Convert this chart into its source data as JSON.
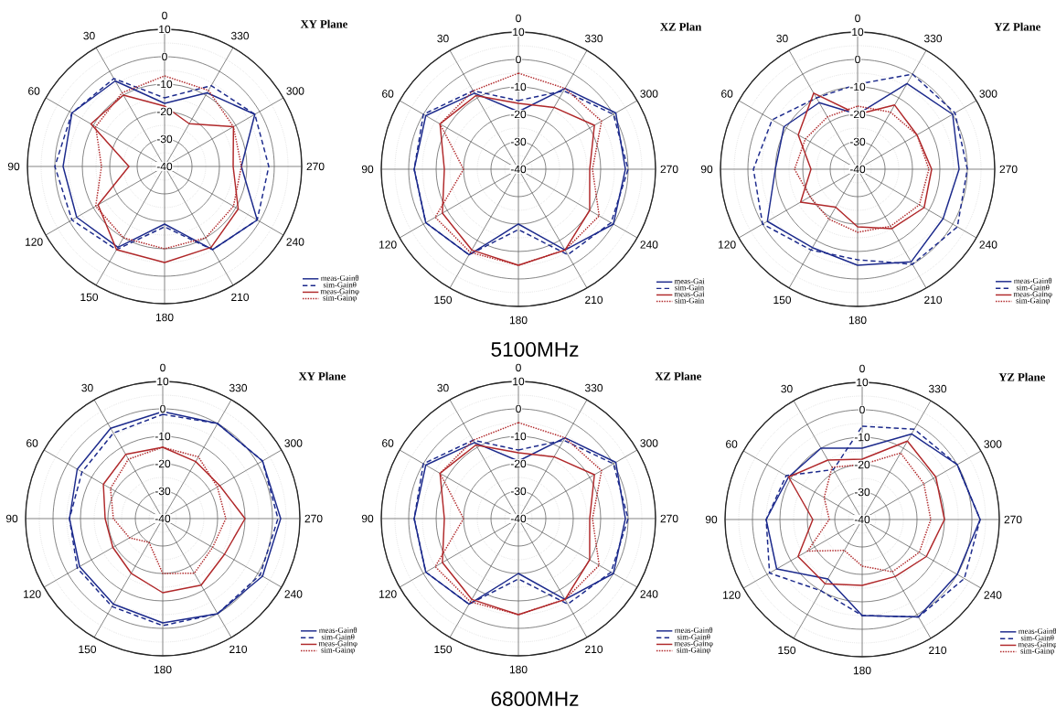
{
  "chart_data": [
    {
      "type": "radar",
      "title": "XY Plane",
      "categories": [
        "0",
        "330",
        "300",
        "270",
        "240",
        "210",
        "180",
        "150",
        "120",
        "90",
        "60",
        "30"
      ],
      "ylim": [
        -40,
        10
      ],
      "yticks": [
        -40,
        -30,
        -20,
        -10,
        0,
        10
      ],
      "grid": true,
      "legend": "bottom right",
      "series": [
        {
          "name": "meas-Gainθ",
          "color": "#1c2a8c",
          "line_style": "solid",
          "values": [
            -17,
            -9,
            -2,
            -12,
            -1,
            -5,
            -19,
            -6,
            -3,
            -3,
            -1,
            -4
          ]
        },
        {
          "name": "sim-Gainθ",
          "color": "#1c2a8c",
          "line_style": "dashed",
          "values": [
            -15,
            -6,
            -2,
            -2,
            -1,
            -5,
            -18,
            -5,
            -1,
            0,
            -1,
            -3
          ]
        },
        {
          "name": "meas-Gainφ",
          "color": "#b0282a",
          "line_style": "solid",
          "values": [
            -18,
            -22,
            -11,
            -15,
            -9,
            -6,
            -5,
            -5,
            -12,
            -27,
            -9,
            -10
          ]
        },
        {
          "name": "sim-Gainφ",
          "color": "#b0282a",
          "line_style": "dotted",
          "values": [
            -7,
            -8,
            -11,
            -12,
            -11,
            -10,
            -10,
            -10,
            -11,
            -17,
            -11,
            -9
          ]
        }
      ]
    },
    {
      "type": "radar",
      "title": "XZ Plan",
      "categories": [
        "0",
        "330",
        "300",
        "270",
        "240",
        "210",
        "180",
        "150",
        "120",
        "90",
        "60",
        "30"
      ],
      "ylim": [
        -40,
        10
      ],
      "yticks": [
        -40,
        -30,
        -20,
        -10,
        0,
        10
      ],
      "grid": true,
      "legend": "bottom right",
      "annotations": [
        "5100MHz"
      ],
      "series": [
        {
          "name": "meas-Gai",
          "color": "#1c2a8c",
          "line_style": "solid",
          "values": [
            -19,
            -6,
            1,
            -1,
            0,
            -6,
            -20,
            -4,
            -1,
            -2,
            -1,
            -8
          ]
        },
        {
          "name": "sim-Gain",
          "color": "#1c2a8c",
          "line_style": "dashed",
          "values": [
            -15,
            -7,
            0,
            0,
            -1,
            -4,
            -18,
            -4,
            -1,
            -2,
            0,
            -7
          ]
        },
        {
          "name": "meas-Gai",
          "color": "#b0282a",
          "line_style": "solid",
          "values": [
            -16,
            -14,
            -8,
            -14,
            -10,
            -6,
            -5,
            -6,
            -8,
            -13,
            -7,
            -9
          ]
        },
        {
          "name": "sim-Gain",
          "color": "#b0282a",
          "line_style": "dotted",
          "values": [
            -5,
            -6,
            -5,
            -13,
            -6,
            -6,
            -5,
            -5,
            -5,
            -20,
            -7,
            -7
          ]
        }
      ]
    },
    {
      "type": "radar",
      "title": "YZ Plane",
      "categories": [
        "0",
        "330",
        "300",
        "270",
        "240",
        "210",
        "180",
        "150",
        "120",
        "90",
        "60",
        "30"
      ],
      "ylim": [
        -40,
        10
      ],
      "yticks": [
        -40,
        -30,
        -20,
        -10,
        0,
        10
      ],
      "grid": true,
      "legend": "bottom right",
      "series": [
        {
          "name": "meas-Gainθ",
          "color": "#1c2a8c",
          "line_style": "solid",
          "values": [
            -20,
            -4,
            0,
            -3,
            -4,
            -1,
            -5,
            -7,
            -2,
            -10,
            -9,
            -12
          ]
        },
        {
          "name": "sim-Gainθ",
          "color": "#1c2a8c",
          "line_style": "dashed",
          "values": [
            -9,
            0,
            1,
            0,
            2,
            0,
            -7,
            -6,
            0,
            -2,
            -4,
            -10
          ]
        },
        {
          "name": "meas-Gainφ",
          "color": "#b0282a",
          "line_style": "solid",
          "values": [
            -20,
            -13,
            -15,
            -13,
            -12,
            -15,
            -19,
            -24,
            -16,
            -23,
            -15,
            -8
          ]
        },
        {
          "name": "sim-Gainφ",
          "color": "#b0282a",
          "line_style": "dotted",
          "values": [
            -17,
            -16,
            -15,
            -14,
            -14,
            -16,
            -17,
            -19,
            -20,
            -17,
            -18,
            -18
          ]
        }
      ]
    },
    {
      "type": "radar",
      "title": "XY Plane",
      "categories": [
        "0",
        "330",
        "300",
        "270",
        "240",
        "210",
        "180",
        "150",
        "120",
        "90",
        "60",
        "30"
      ],
      "ylim": [
        -40,
        10
      ],
      "yticks": [
        -40,
        -30,
        -20,
        -10,
        0,
        10
      ],
      "grid": true,
      "legend": "bottom right",
      "series": [
        {
          "name": "meas-Gainθ",
          "color": "#1c2a8c",
          "line_style": "solid",
          "values": [
            -1,
            0,
            2,
            3,
            2,
            0,
            -2,
            -4,
            -5,
            -6,
            -4,
            -2
          ]
        },
        {
          "name": "sim-Gainθ",
          "color": "#1c2a8c",
          "line_style": "dashed",
          "values": [
            -2,
            0,
            2,
            2,
            1,
            0,
            -1,
            -3,
            -4,
            -6,
            -6,
            -4
          ]
        },
        {
          "name": "meas-Gainφ",
          "color": "#b0282a",
          "line_style": "solid",
          "values": [
            -14,
            -16,
            -16,
            -10,
            -14,
            -12,
            -13,
            -17,
            -19,
            -19,
            -15,
            -13
          ]
        },
        {
          "name": "sim-Gainφ",
          "color": "#b0282a",
          "line_style": "dotted",
          "values": [
            -14,
            -14,
            -17,
            -17,
            -19,
            -17,
            -20,
            -30,
            -26,
            -22,
            -18,
            -15
          ]
        }
      ]
    },
    {
      "type": "radar",
      "title": "XZ Plane",
      "categories": [
        "0",
        "330",
        "300",
        "270",
        "240",
        "210",
        "180",
        "150",
        "120",
        "90",
        "60",
        "30"
      ],
      "ylim": [
        -40,
        10
      ],
      "yticks": [
        -40,
        -30,
        -20,
        -10,
        0,
        10
      ],
      "grid": true,
      "legend": "bottom right",
      "annotations": [
        "6800MHz"
      ],
      "series": [
        {
          "name": "meas-Gainθ",
          "color": "#1c2a8c",
          "line_style": "solid",
          "values": [
            -19,
            -6,
            1,
            -1,
            0,
            -6,
            -20,
            -4,
            -1,
            -2,
            -1,
            -8
          ]
        },
        {
          "name": "sim-Gainθ",
          "color": "#1c2a8c",
          "line_style": "dashed",
          "values": [
            -15,
            -7,
            0,
            0,
            -1,
            -4,
            -18,
            -4,
            -1,
            -2,
            0,
            -7
          ]
        },
        {
          "name": "meas-Gainφ",
          "color": "#b0282a",
          "line_style": "solid",
          "values": [
            -16,
            -14,
            -8,
            -14,
            -10,
            -6,
            -5,
            -6,
            -8,
            -13,
            -7,
            -9
          ]
        },
        {
          "name": "sim-Gainφ",
          "color": "#b0282a",
          "line_style": "dotted",
          "values": [
            -5,
            -6,
            -5,
            -13,
            -6,
            -6,
            -5,
            -5,
            -5,
            -20,
            -7,
            -7
          ]
        }
      ]
    },
    {
      "type": "radar",
      "title": "YZ Plane",
      "categories": [
        "0",
        "330",
        "300",
        "270",
        "240",
        "210",
        "180",
        "150",
        "120",
        "90",
        "60",
        "30"
      ],
      "ylim": [
        -40,
        10
      ],
      "yticks": [
        -40,
        -30,
        -20,
        -10,
        0,
        10
      ],
      "grid": true,
      "legend": "bottom right",
      "series": [
        {
          "name": "meas-Gainθ",
          "color": "#1c2a8c",
          "line_style": "solid",
          "values": [
            -14,
            -4,
            0,
            3,
            0,
            1,
            -5,
            -15,
            -4,
            -5,
            -9,
            -10
          ]
        },
        {
          "name": "sim-Gainθ",
          "color": "#1c2a8c",
          "line_style": "dashed",
          "values": [
            -6,
            -2,
            0,
            3,
            3,
            1,
            -5,
            -10,
            -1,
            -5,
            -8,
            -19
          ]
        },
        {
          "name": "meas-Gainφ",
          "color": "#b0282a",
          "line_style": "solid",
          "values": [
            -18,
            -7,
            -9,
            -10,
            -13,
            -16,
            -16,
            -13,
            -13,
            -22,
            -9,
            -15
          ]
        },
        {
          "name": "sim-Gainφ",
          "color": "#b0282a",
          "line_style": "dotted",
          "values": [
            -20,
            -12,
            -14,
            -15,
            -16,
            -18,
            -23,
            -27,
            -17,
            -28,
            -24,
            -18
          ]
        }
      ]
    }
  ]
}
